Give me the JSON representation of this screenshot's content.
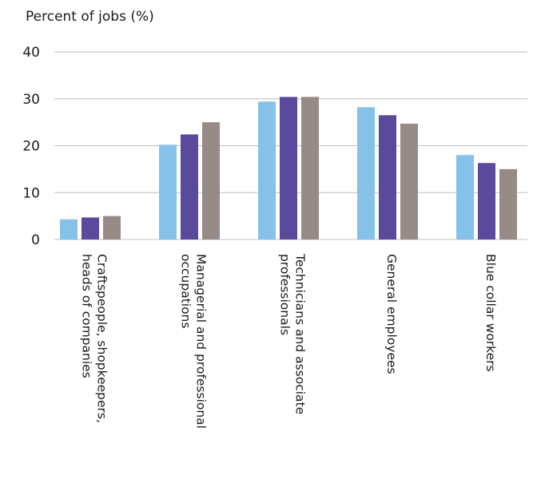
{
  "chart_data": {
    "type": "bar",
    "ylabel": "Percent of jobs (%)",
    "ylim": [
      0,
      40
    ],
    "yticks": [
      0,
      10,
      20,
      30,
      40
    ],
    "grid": true,
    "legend": "none",
    "categories": [
      [
        "Craftspeople, shopkeepers,",
        "heads of companies"
      ],
      [
        "Managerial and professional",
        "occupations"
      ],
      [
        "Technicians and associate",
        "professionals"
      ],
      [
        "General employees"
      ],
      [
        "Blue collar workers"
      ]
    ],
    "series": [
      {
        "color": "#85c1e9",
        "values": [
          4.3,
          20.2,
          29.4,
          28.2,
          18.0
        ]
      },
      {
        "color": "#5b4a9b",
        "values": [
          4.7,
          22.4,
          30.4,
          26.5,
          16.3
        ]
      },
      {
        "color": "#968b86",
        "values": [
          5.0,
          25.0,
          30.4,
          24.7,
          15.0
        ]
      }
    ]
  }
}
